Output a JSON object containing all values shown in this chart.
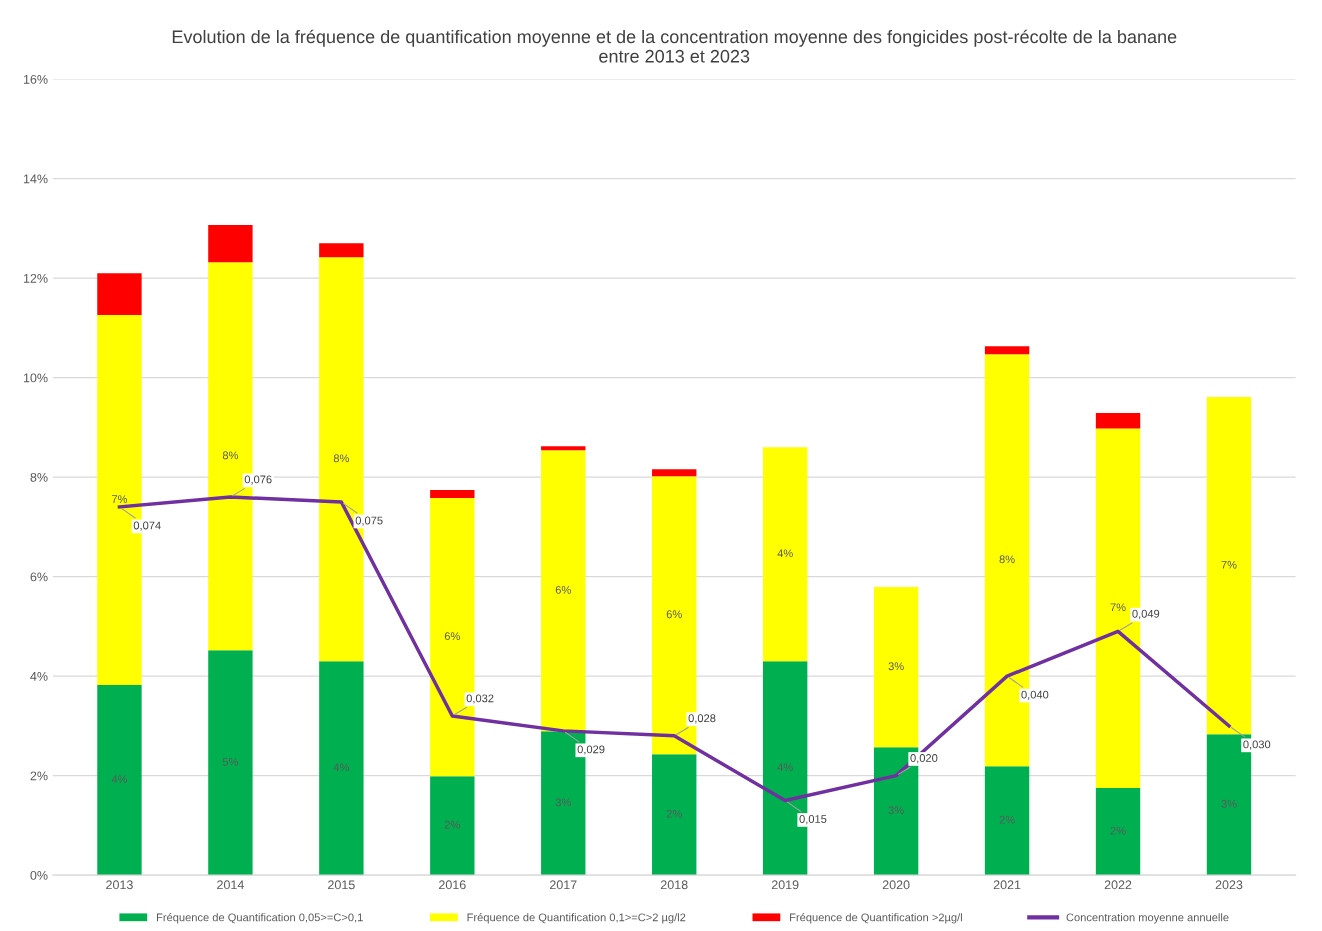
{
  "chart_data": {
    "type": "bar",
    "stacked": true,
    "title": "Evolution de la fréquence de quantification moyenne et de la concentration moyenne des fongicides post-récolte de la banane\nentre 2013 et 2023",
    "categories": [
      "2013",
      "2014",
      "2015",
      "2016",
      "2017",
      "2018",
      "2019",
      "2020",
      "2021",
      "2022",
      "2023"
    ],
    "series": [
      {
        "name": "Fréquence de Quantification 0,05>=C>0,1",
        "color": "#00b050",
        "values": [
          0.0382,
          0.0452,
          0.043,
          0.0199,
          0.0289,
          0.0243,
          0.043,
          0.0257,
          0.0219,
          0.0175,
          0.0283
        ],
        "value_labels": [
          "4%",
          "5%",
          "4%",
          "2%",
          "3%",
          "2%",
          "4%",
          "3%",
          "2%",
          "2%",
          "3%"
        ]
      },
      {
        "name": "Fréquence de Quantification 0,1>=C>2 µg/l2",
        "color": "#ffff00",
        "values": [
          0.0744,
          0.078,
          0.0812,
          0.0559,
          0.0565,
          0.0559,
          0.043,
          0.0322,
          0.0828,
          0.0723,
          0.0678
        ],
        "value_labels": [
          "7%",
          "8%",
          "8%",
          "6%",
          "6%",
          "6%",
          "4%",
          "3%",
          "8%",
          "7%",
          "7%"
        ]
      },
      {
        "name": "Fréquence de Quantification >2µg/l",
        "color": "#ff0000",
        "values": [
          0.0084,
          0.0075,
          0.0028,
          0.0016,
          0.0008,
          0.0014,
          0,
          0,
          0.0016,
          0.0031,
          0
        ]
      },
      {
        "name": "Concentration moyenne annuelle",
        "color": "#7030a0",
        "type": "line",
        "values": [
          0.074,
          0.076,
          0.075,
          0.032,
          0.029,
          0.028,
          0.015,
          0.02,
          0.04,
          0.049,
          0.03
        ],
        "value_labels": [
          "0,074",
          "0,076",
          "0,075",
          "0,032",
          "0,029",
          "0,028",
          "0,015",
          "0,020",
          "0,040",
          "0,049",
          "0,030"
        ]
      }
    ],
    "ylim": [
      0,
      0.16
    ],
    "yticks": [
      {
        "value": 0,
        "label": "0%"
      },
      {
        "value": 0.02,
        "label": "2%"
      },
      {
        "value": 0.04,
        "label": "4%"
      },
      {
        "value": 0.06,
        "label": "6%"
      },
      {
        "value": 0.08,
        "label": "8%"
      },
      {
        "value": 0.1,
        "label": "10%"
      },
      {
        "value": 0.12,
        "label": "12%"
      },
      {
        "value": 0.14,
        "label": "14%"
      },
      {
        "value": 0.16,
        "label": "16%"
      }
    ],
    "grid": "y",
    "legend": "bottom",
    "marker": "none",
    "line_style": "solid"
  }
}
